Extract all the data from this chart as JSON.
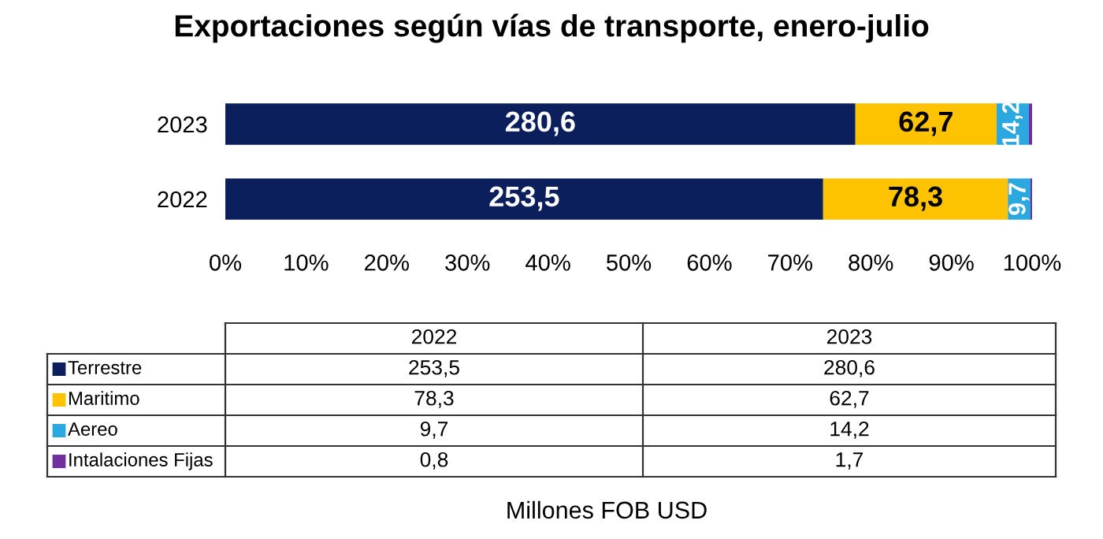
{
  "chart_data": {
    "type": "bar",
    "orientation": "horizontal",
    "stacked": true,
    "title": "Exportaciones según vías de transporte, enero-julio",
    "categories": [
      "2023",
      "2022"
    ],
    "series": [
      {
        "name": "Terrestre",
        "color": "#0a1f5c",
        "values": [
          78.1,
          74.1
        ]
      },
      {
        "name": "Maritimo",
        "color": "#fdc300",
        "values": [
          17.5,
          22.9
        ]
      },
      {
        "name": "Aereo",
        "color": "#2aa8df",
        "values": [
          4.0,
          2.8
        ]
      },
      {
        "name": "Intalaciones Fijas",
        "color": "#7030a0",
        "values": [
          0.5,
          0.2
        ]
      }
    ],
    "xlim": [
      0,
      100
    ],
    "xticks": [
      {
        "value": 0,
        "label": "0%"
      },
      {
        "value": 10,
        "label": "10%"
      },
      {
        "value": 20,
        "label": "20%"
      },
      {
        "value": 30,
        "label": "30%"
      },
      {
        "value": 40,
        "label": "40%"
      },
      {
        "value": 50,
        "label": "50%"
      },
      {
        "value": 60,
        "label": "60%"
      },
      {
        "value": 70,
        "label": "70%"
      },
      {
        "value": 80,
        "label": "80%"
      },
      {
        "value": 90,
        "label": "90%"
      },
      {
        "value": 100,
        "label": "100%"
      }
    ],
    "grid": false,
    "legend": "bottom",
    "annotations": [
      "280,6",
      "62,7",
      "14,2",
      "253,5",
      "78,3",
      "9,7",
      "253,5",
      "280,6",
      "78,3",
      "62,7",
      "9,7",
      "14,2",
      "0,8",
      "1,7",
      "Millones FOB USD"
    ]
  }
}
